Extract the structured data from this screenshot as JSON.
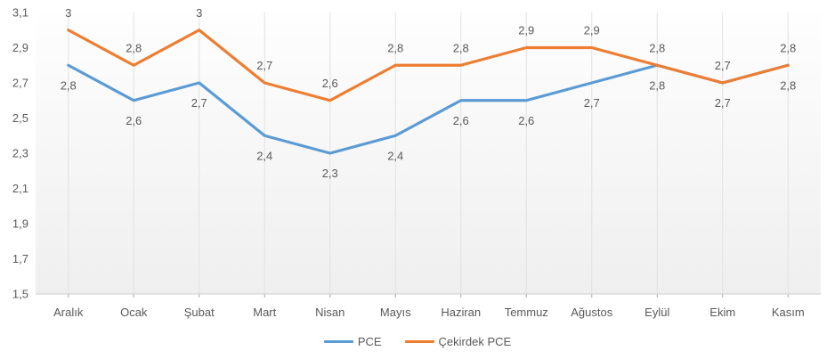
{
  "chart_data": {
    "type": "line",
    "title": "",
    "categories": [
      "Aralık",
      "Ocak",
      "Şubat",
      "Mart",
      "Nisan",
      "Mayıs",
      "Haziran",
      "Temmuz",
      "Ağustos",
      "Eylül",
      "Ekim",
      "Kasım"
    ],
    "series": [
      {
        "name": "PCE",
        "color": "#5B9BD5",
        "values": [
          2.8,
          2.6,
          2.7,
          2.4,
          2.3,
          2.4,
          2.6,
          2.6,
          2.7,
          2.8,
          2.7,
          2.8
        ],
        "labels": [
          "2,8",
          "2,6",
          "2,7",
          "2,4",
          "2,3",
          "2,4",
          "2,6",
          "2,6",
          "2,7",
          "2,8",
          "2,7",
          "2,8"
        ],
        "label_position": "below"
      },
      {
        "name": "Çekirdek PCE",
        "color": "#ED7D31",
        "values": [
          3.0,
          2.8,
          3.0,
          2.7,
          2.6,
          2.8,
          2.8,
          2.9,
          2.9,
          2.8,
          2.7,
          2.8
        ],
        "labels": [
          "3",
          "2,8",
          "3",
          "2,7",
          "2,6",
          "2,8",
          "2,8",
          "2,9",
          "2,9",
          "2,8",
          "2,7",
          "2,8"
        ],
        "label_position": "above"
      }
    ],
    "y_axis": {
      "min": 1.5,
      "max": 3.1,
      "step": 0.2,
      "tick_labels": [
        "3,1",
        "2,9",
        "2,7",
        "2,5",
        "2,3",
        "2,1",
        "1,9",
        "1,7",
        "1,5"
      ]
    },
    "xlabel": "",
    "ylabel": "",
    "grid": "vertical-only",
    "legend_position": "bottom",
    "legend_entries": [
      "PCE",
      "Çekirdek PCE"
    ],
    "styles": {
      "text_color": "#595959",
      "gridline_color": "#e2e2e2",
      "axis_line_color": "#cfcfcf",
      "tick_color": "#a6a6a6",
      "plot_bg_top": "#fefefe",
      "plot_bg_bottom": "#efefef",
      "line_width": 3.2
    }
  }
}
